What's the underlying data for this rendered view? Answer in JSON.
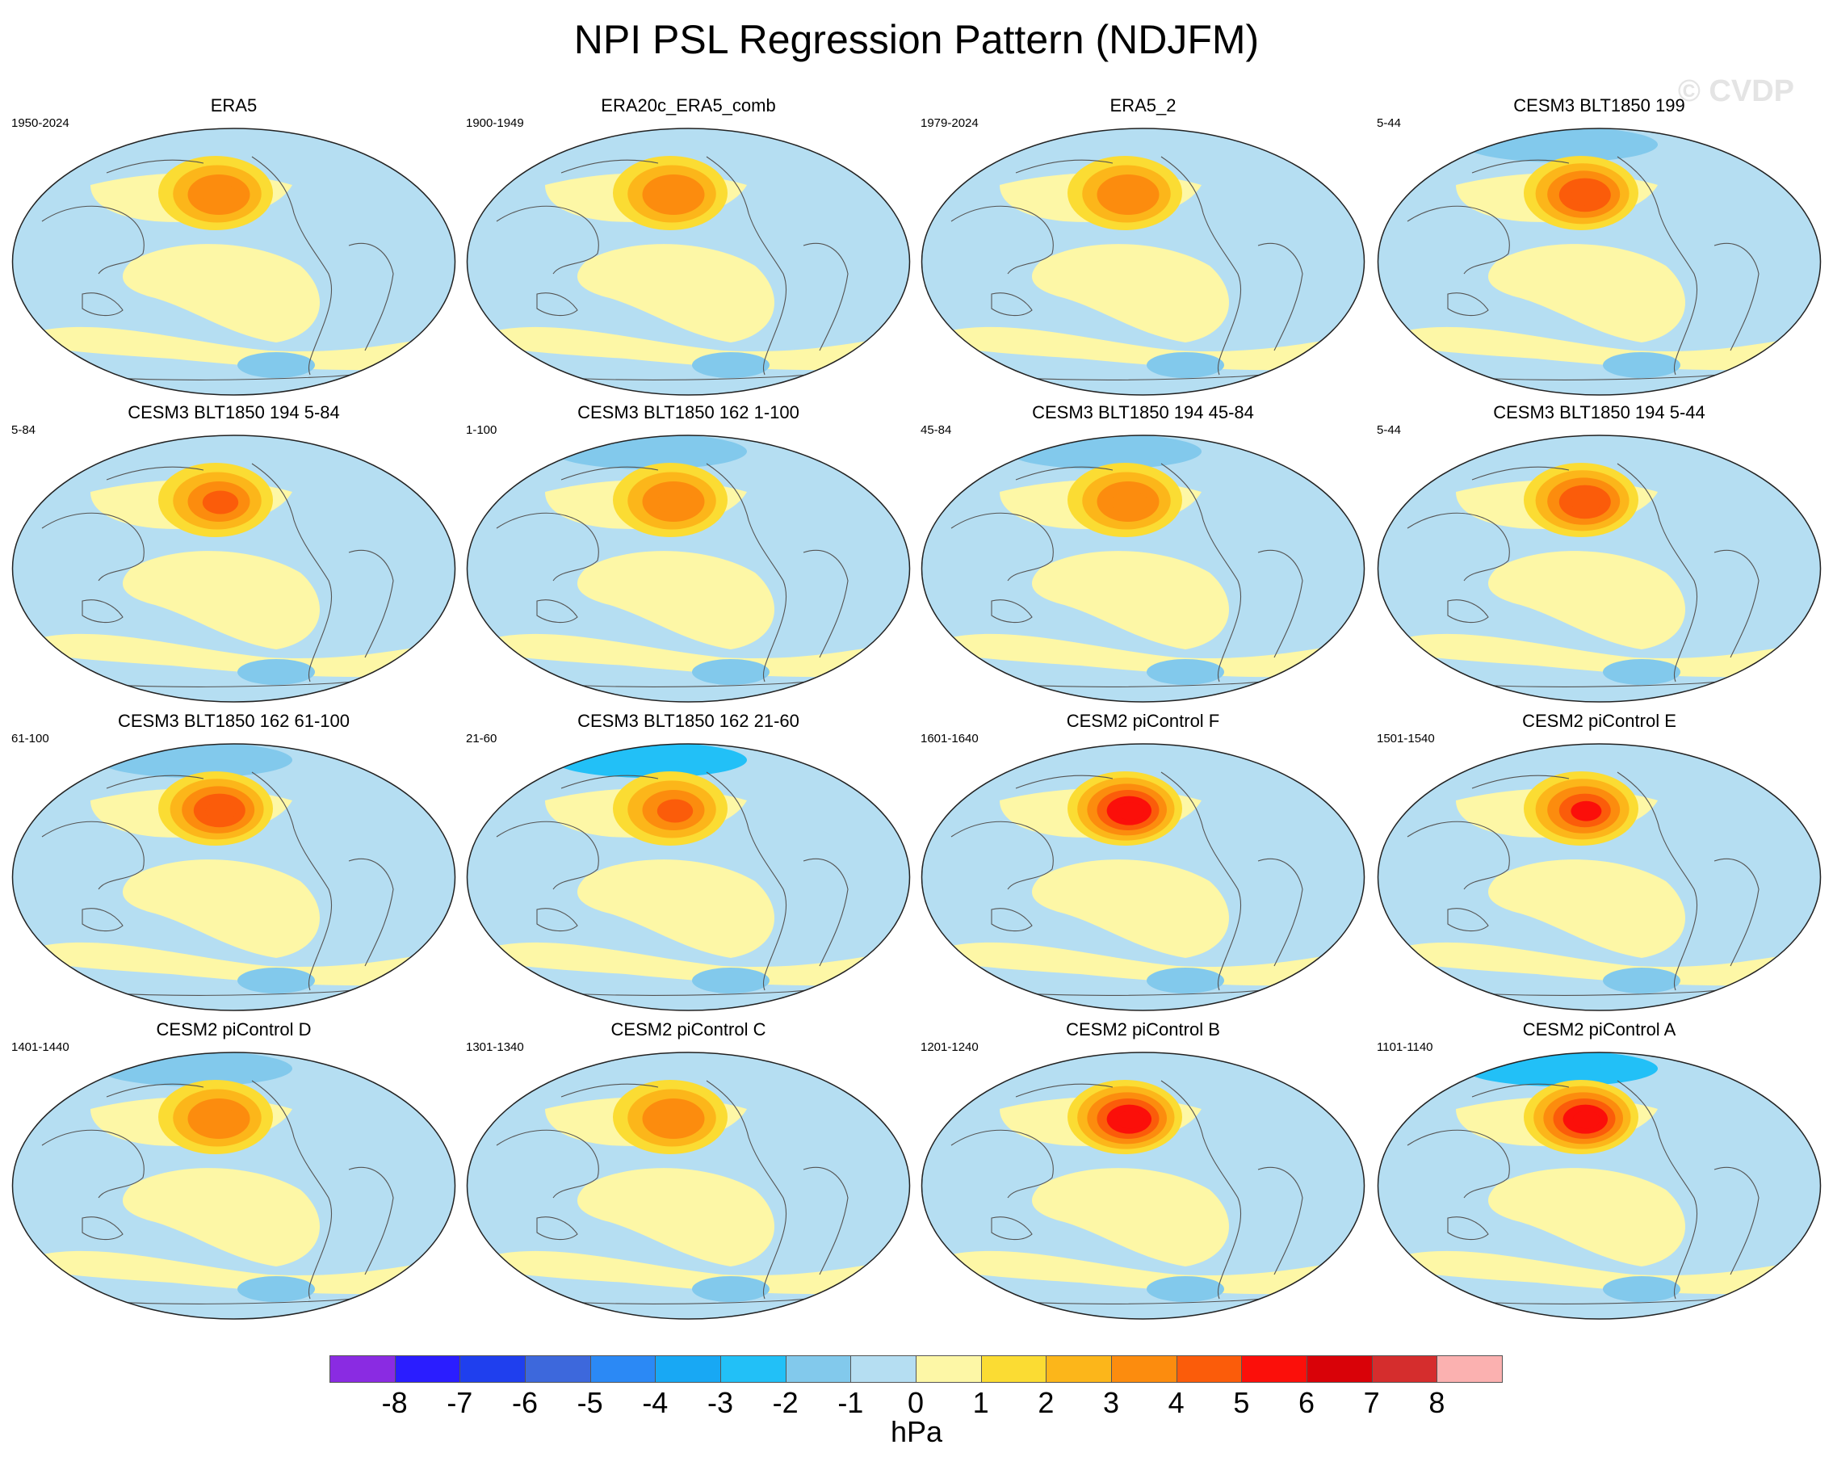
{
  "title": "NPI PSL Regression Pattern (NDJFM)",
  "watermark": "© CVDP",
  "chart_data": {
    "type": "heatmap",
    "projection": "Robinson (global)",
    "variable": "PSL regression on NPI",
    "units": "hPa",
    "colorbar": {
      "labels": [
        "-8",
        "-7",
        "-6",
        "-5",
        "-4",
        "-3",
        "-2",
        "-1",
        "0",
        "1",
        "2",
        "3",
        "4",
        "5",
        "6",
        "7",
        "8"
      ],
      "colors": [
        "#8a2be2",
        "#2a1dff",
        "#1f3fee",
        "#3d68dc",
        "#2b89f5",
        "#18a8f4",
        "#22c0f7",
        "#82c9ec",
        "#b5def2",
        "#fdf7a6",
        "#fbdc33",
        "#fcb61a",
        "#fc8c0e",
        "#fb5c0a",
        "#fb0f0a",
        "#d90208",
        "#d52d2d",
        "#fbb1b0"
      ]
    },
    "panels": [
      {
        "title": "ERA5",
        "years": "1950-2024",
        "peak": 3.8,
        "arctic_low": 0
      },
      {
        "title": "ERA20c_ERA5_comb",
        "years": "1900-1949",
        "peak": 3.6,
        "arctic_low": 0
      },
      {
        "title": "ERA5_2",
        "years": "1979-2024",
        "peak": 3.7,
        "arctic_low": 0
      },
      {
        "title": "CESM3 BLT1850 199",
        "years": "5-44",
        "peak": 4.2,
        "arctic_low": -2
      },
      {
        "title": "CESM3 BLT1850 194 5-84",
        "years": "5-84",
        "peak": 4.0,
        "arctic_low": -1
      },
      {
        "title": "CESM3 BLT1850 162 1-100",
        "years": "1-100",
        "peak": 3.9,
        "arctic_low": -2
      },
      {
        "title": "CESM3 BLT1850 194 45-84",
        "years": "45-84",
        "peak": 3.8,
        "arctic_low": -2
      },
      {
        "title": "CESM3 BLT1850 194 5-44",
        "years": "5-44",
        "peak": 4.1,
        "arctic_low": -1
      },
      {
        "title": "CESM3 BLT1850 162 61-100",
        "years": "61-100",
        "peak": 4.1,
        "arctic_low": -2
      },
      {
        "title": "CESM3 BLT1850 162 21-60",
        "years": "21-60",
        "peak": 4.0,
        "arctic_low": -3
      },
      {
        "title": "CESM2 piControl F",
        "years": "1601-1640",
        "peak": 5.2,
        "arctic_low": -1
      },
      {
        "title": "CESM2 piControl E",
        "years": "1501-1540",
        "peak": 5.0,
        "arctic_low": -1
      },
      {
        "title": "CESM2 piControl D",
        "years": "1401-1440",
        "peak": 3.9,
        "arctic_low": -2
      },
      {
        "title": "CESM2 piControl C",
        "years": "1301-1340",
        "peak": 3.6,
        "arctic_low": -1
      },
      {
        "title": "CESM2 piControl B",
        "years": "1201-1240",
        "peak": 5.2,
        "arctic_low": -1
      },
      {
        "title": "CESM2 piControl A",
        "years": "1101-1140",
        "peak": 5.1,
        "arctic_low": -3
      }
    ]
  }
}
